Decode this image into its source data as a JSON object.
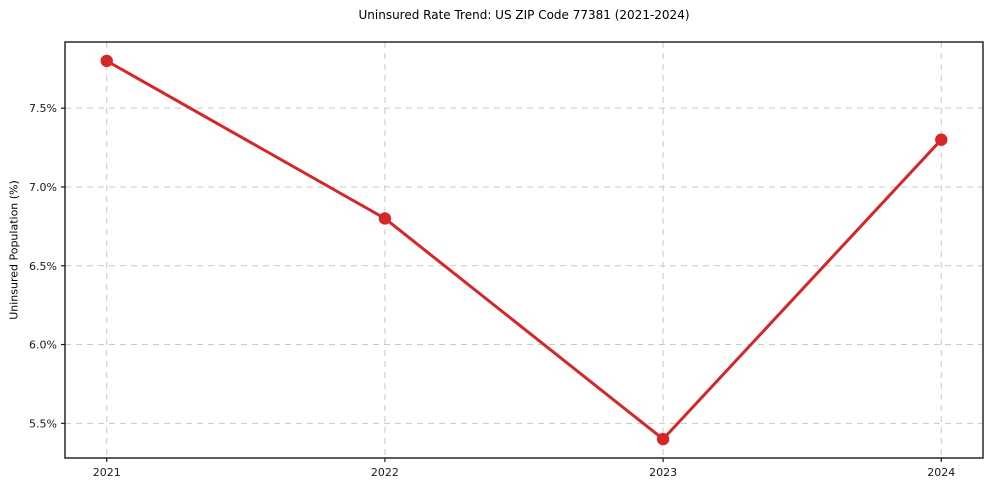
{
  "figure": {
    "title": "Uninsured Rate Trend: US ZIP Code 77381 (2021-2024)",
    "background_color": "#ffffff"
  },
  "chart_data": {
    "type": "line",
    "title": "Uninsured Rate Trend: US ZIP Code 77381 (2021-2024)",
    "xlabel": "",
    "ylabel": "Uninsured Population (%)",
    "x": [
      2021,
      2022,
      2023,
      2024
    ],
    "xtick_labels": [
      "2021",
      "2022",
      "2023",
      "2024"
    ],
    "series": [
      {
        "name": "uninsured-rate",
        "values": [
          7.8,
          6.8,
          5.4,
          7.3
        ],
        "color": "#d62728",
        "marker": "circle",
        "line_width": 3,
        "marker_radius": 6.2
      }
    ],
    "xlim": [
      2020.85,
      2024.15
    ],
    "ylim": [
      5.28,
      7.92
    ],
    "ytick_values": [
      5.5,
      6.0,
      6.5,
      7.0,
      7.5
    ],
    "ytick_labels": [
      "5.5%",
      "6.0%",
      "6.5%",
      "7.0%",
      "7.5%"
    ],
    "grid": true,
    "grid_color": "#c9c9c9",
    "grid_style": "dashed",
    "spine_color": "#1a1a1a",
    "tick_color": "#1a1a1a",
    "legend": "none"
  }
}
